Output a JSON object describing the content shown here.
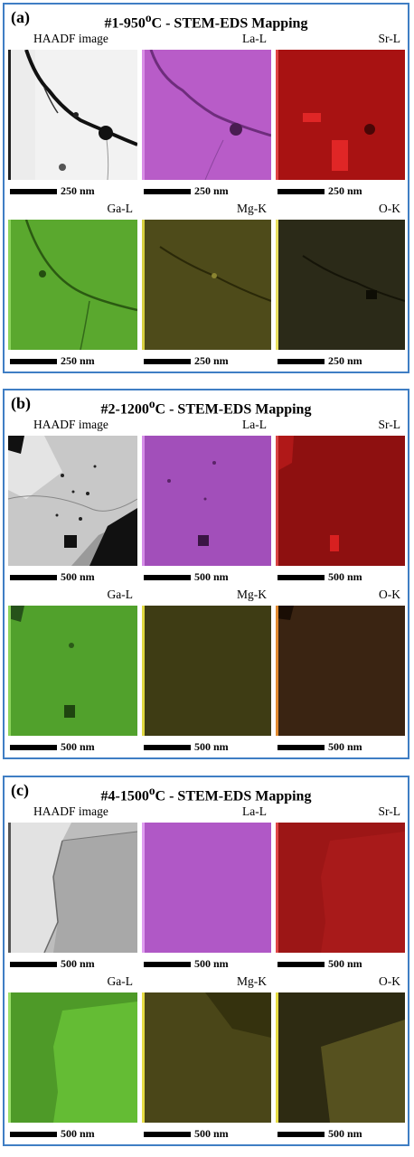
{
  "panels": [
    {
      "label": "(a)",
      "title_prefix": "#1-950",
      "title_sup": "o",
      "title_suffix": "C - STEM-EDS Mapping",
      "tiles": [
        {
          "name": "HAADF image",
          "scale": "250 nm",
          "color": "#e9e9e9"
        },
        {
          "name": "La-L",
          "scale": "250 nm",
          "color": "#b85cc8"
        },
        {
          "name": "Sr-L",
          "scale": "250 nm",
          "color": "#a81212"
        },
        {
          "name": "Ga-L",
          "scale": "250 nm",
          "color": "#5aa82e"
        },
        {
          "name": "Mg-K",
          "scale": "250 nm",
          "color": "#4e4b1a"
        },
        {
          "name": "O-K",
          "scale": "250 nm",
          "color": "#2b2a18"
        }
      ]
    },
    {
      "label": "(b)",
      "title_prefix": "#2-1200",
      "title_sup": "o",
      "title_suffix": "C - STEM-EDS Mapping",
      "tiles": [
        {
          "name": "HAADF image",
          "scale": "500 nm",
          "color": "#b0b0b0"
        },
        {
          "name": "La-L",
          "scale": "500 nm",
          "color": "#a24fba"
        },
        {
          "name": "Sr-L",
          "scale": "500 nm",
          "color": "#8e1010"
        },
        {
          "name": "Ga-L",
          "scale": "500 nm",
          "color": "#51a12c"
        },
        {
          "name": "Mg-K",
          "scale": "500 nm",
          "color": "#3e3c14"
        },
        {
          "name": "O-K",
          "scale": "500 nm",
          "color": "#3a2412"
        }
      ]
    },
    {
      "label": "(c)",
      "title_prefix": "#4-1500",
      "title_sup": "o",
      "title_suffix": "C - STEM-EDS Mapping",
      "tiles": [
        {
          "name": "HAADF image",
          "scale": "500 nm",
          "color": "#c4c4c4"
        },
        {
          "name": "La-L",
          "scale": "500 nm",
          "color": "#b058c6"
        },
        {
          "name": "Sr-L",
          "scale": "500 nm",
          "color": "#9c1616"
        },
        {
          "name": "Ga-L",
          "scale": "500 nm",
          "color": "#5ab230"
        },
        {
          "name": "Mg-K",
          "scale": "500 nm",
          "color": "#4a4618"
        },
        {
          "name": "O-K",
          "scale": "500 nm",
          "color": "#494420"
        }
      ]
    }
  ]
}
